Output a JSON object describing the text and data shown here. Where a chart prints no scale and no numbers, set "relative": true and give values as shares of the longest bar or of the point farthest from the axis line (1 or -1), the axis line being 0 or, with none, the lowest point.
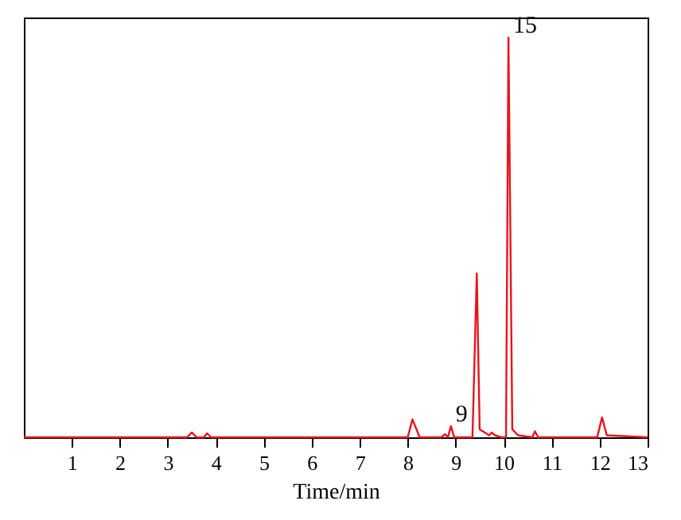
{
  "chart_data": {
    "type": "line",
    "relative": true,
    "xlabel": "Time/min",
    "xlim": [
      0,
      13
    ],
    "xticks": [
      1,
      2,
      3,
      4,
      5,
      6,
      7,
      8,
      9,
      10,
      11,
      12,
      13
    ],
    "tick_labels": "x",
    "grid": false,
    "marker": "none",
    "line_style": "solid",
    "series": [
      {
        "color": "#e8141c",
        "x": [
          0,
          3.4,
          3.5,
          3.6,
          3.75,
          3.82,
          3.9,
          8.0,
          8.1,
          8.25,
          8.7,
          8.78,
          8.84,
          8.9,
          8.97,
          9.35,
          9.44,
          9.5,
          9.7,
          9.75,
          9.82,
          9.95,
          10.05,
          10.1,
          10.18,
          10.3,
          10.6,
          10.65,
          10.72,
          11.95,
          12.05,
          12.15,
          13
        ],
        "values": [
          0,
          0,
          0.012,
          0,
          0,
          0.01,
          0,
          0,
          0.045,
          0,
          0,
          0.008,
          0,
          0.028,
          0,
          0,
          0.41,
          0.02,
          0.005,
          0.012,
          0.005,
          0,
          0,
          1,
          0.02,
          0.005,
          0,
          0.015,
          0,
          0,
          0.05,
          0.005,
          0
        ]
      }
    ],
    "annotations": [
      {
        "text": "9",
        "x": 8.9,
        "y": 0.028
      },
      {
        "text": "15",
        "x": 10.1,
        "y": 1
      }
    ]
  }
}
